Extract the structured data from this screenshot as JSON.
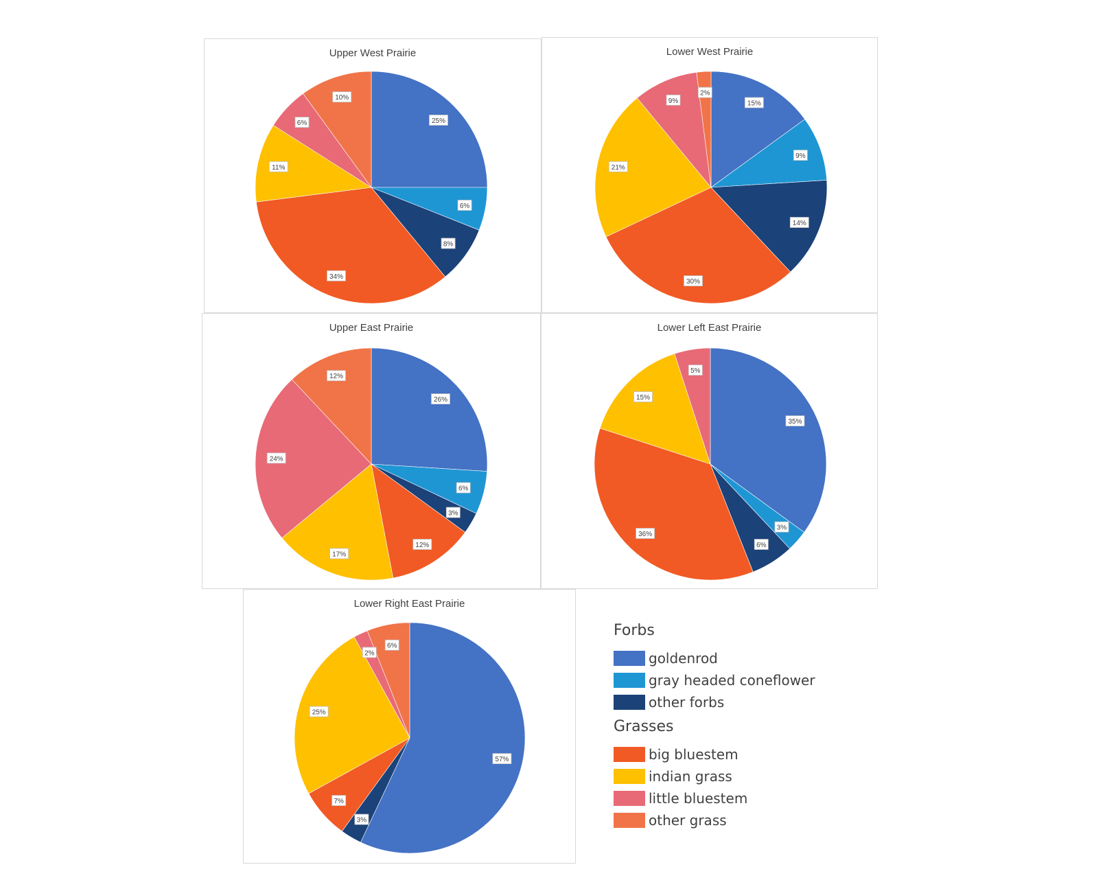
{
  "chart_data": [
    {
      "type": "pie",
      "title": "Upper West Prairie",
      "slices": [
        {
          "category": "goldenrod",
          "value": 25,
          "label": "25%"
        },
        {
          "category": "gray headed coneflower",
          "value": 6,
          "label": "6%"
        },
        {
          "category": "other forbs",
          "value": 8,
          "label": "8%"
        },
        {
          "category": "big bluestem",
          "value": 34,
          "label": "34%"
        },
        {
          "category": "indian grass",
          "value": 11,
          "label": "11%"
        },
        {
          "category": "little bluestem",
          "value": 6,
          "label": "6%"
        },
        {
          "category": "other grass",
          "value": 10,
          "label": "10%"
        }
      ]
    },
    {
      "type": "pie",
      "title": "Lower West Prairie",
      "slices": [
        {
          "category": "goldenrod",
          "value": 15,
          "label": "15%"
        },
        {
          "category": "gray headed coneflower",
          "value": 9,
          "label": "9%"
        },
        {
          "category": "other forbs",
          "value": 14,
          "label": "14%"
        },
        {
          "category": "big bluestem",
          "value": 30,
          "label": "30%"
        },
        {
          "category": "indian grass",
          "value": 21,
          "label": "21%"
        },
        {
          "category": "little bluestem",
          "value": 9,
          "label": "9%"
        },
        {
          "category": "other grass",
          "value": 2,
          "label": "2%"
        }
      ]
    },
    {
      "type": "pie",
      "title": "Upper East Prairie",
      "slices": [
        {
          "category": "goldenrod",
          "value": 26,
          "label": "26%"
        },
        {
          "category": "gray headed coneflower",
          "value": 6,
          "label": "6%"
        },
        {
          "category": "other forbs",
          "value": 3,
          "label": "3%"
        },
        {
          "category": "big bluestem",
          "value": 12,
          "label": "12%"
        },
        {
          "category": "indian grass",
          "value": 17,
          "label": "17%"
        },
        {
          "category": "little bluestem",
          "value": 24,
          "label": "24%"
        },
        {
          "category": "other grass",
          "value": 12,
          "label": "12%"
        }
      ]
    },
    {
      "type": "pie",
      "title": "Lower Left East Prairie",
      "slices": [
        {
          "category": "goldenrod",
          "value": 35,
          "label": "35%"
        },
        {
          "category": "gray headed coneflower",
          "value": 3,
          "label": "3%"
        },
        {
          "category": "other forbs",
          "value": 6,
          "label": "6%"
        },
        {
          "category": "big bluestem",
          "value": 36,
          "label": "36%"
        },
        {
          "category": "indian grass",
          "value": 15,
          "label": "15%"
        },
        {
          "category": "little bluestem",
          "value": 5,
          "label": "5%"
        },
        {
          "category": "other grass",
          "value": 0,
          "label": ""
        }
      ]
    },
    {
      "type": "pie",
      "title": "Lower Right East Prairie",
      "slices": [
        {
          "category": "goldenrod",
          "value": 57,
          "label": "57%"
        },
        {
          "category": "gray headed coneflower",
          "value": 0,
          "label": ""
        },
        {
          "category": "other forbs",
          "value": 3,
          "label": "3%"
        },
        {
          "category": "big bluestem",
          "value": 7,
          "label": "7%"
        },
        {
          "category": "indian grass",
          "value": 25,
          "label": "25%"
        },
        {
          "category": "little bluestem",
          "value": 2,
          "label": "2%"
        },
        {
          "category": "other grass",
          "value": 6,
          "label": "6%"
        }
      ]
    }
  ],
  "colors": {
    "goldenrod": "#4472c4",
    "gray headed coneflower": "#1f96d4",
    "other forbs": "#1b4279",
    "big bluestem": "#f15a24",
    "indian grass": "#ffc000",
    "little bluestem": "#e86a76",
    "other grass": "#f07448"
  },
  "legend": {
    "groups": [
      {
        "title": "Forbs",
        "items": [
          "goldenrod",
          "gray headed coneflower",
          "other forbs"
        ]
      },
      {
        "title": "Grasses",
        "items": [
          "big bluestem",
          "indian grass",
          "little bluestem",
          "other grass"
        ]
      }
    ]
  }
}
